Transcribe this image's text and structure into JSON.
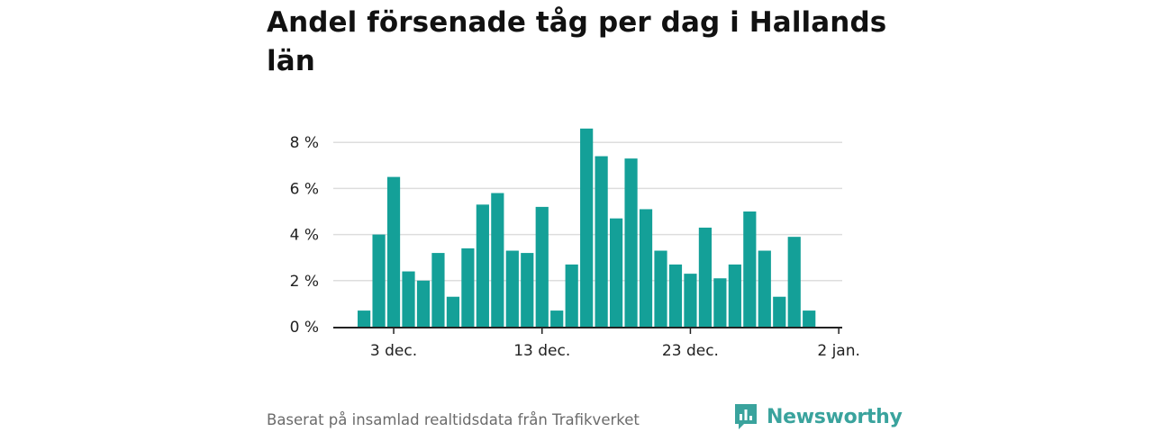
{
  "title": "Andel försenade tåg per dag i Hallands län",
  "footer": {
    "source": "Baserat på insamlad realtidsdata från Trafikverket",
    "brand": "Newsworthy"
  },
  "colors": {
    "bar": "#14a098",
    "grid": "#dddddd",
    "axis": "#222222",
    "brand": "#3aa39d"
  },
  "chart_data": {
    "type": "bar",
    "title": "Andel försenade tåg per dag i Hallands län",
    "xlabel": "",
    "ylabel": "",
    "ylim": [
      0,
      8.5
    ],
    "yticks": [
      {
        "value": 0,
        "label": "0 %"
      },
      {
        "value": 2,
        "label": "2 %"
      },
      {
        "value": 4,
        "label": "4 %"
      },
      {
        "value": 6,
        "label": "6 %"
      },
      {
        "value": 8,
        "label": "8 %"
      }
    ],
    "xticks": [
      {
        "label": "3 dec.",
        "index": 2
      },
      {
        "label": "13 dec.",
        "index": 12
      },
      {
        "label": "23 dec.",
        "index": 22
      },
      {
        "label": "2 jan.",
        "index": 32
      }
    ],
    "categories": [
      "2023-12-01",
      "2023-12-02",
      "2023-12-03",
      "2023-12-04",
      "2023-12-05",
      "2023-12-06",
      "2023-12-07",
      "2023-12-08",
      "2023-12-09",
      "2023-12-10",
      "2023-12-11",
      "2023-12-12",
      "2023-12-13",
      "2023-12-14",
      "2023-12-15",
      "2023-12-16",
      "2023-12-17",
      "2023-12-18",
      "2023-12-19",
      "2023-12-20",
      "2023-12-21",
      "2023-12-22",
      "2023-12-23",
      "2023-12-24",
      "2023-12-25",
      "2023-12-26",
      "2023-12-27",
      "2023-12-28",
      "2023-12-29",
      "2023-12-30",
      "2023-12-31"
    ],
    "values": [
      0.7,
      4.0,
      6.5,
      2.4,
      2.0,
      3.2,
      1.3,
      3.4,
      5.3,
      5.8,
      3.3,
      3.2,
      5.2,
      0.7,
      2.7,
      8.6,
      7.4,
      4.7,
      7.3,
      5.1,
      3.3,
      2.7,
      2.3,
      4.3,
      2.1,
      2.7,
      5.0,
      3.3,
      1.3,
      3.9,
      0.7
    ]
  }
}
